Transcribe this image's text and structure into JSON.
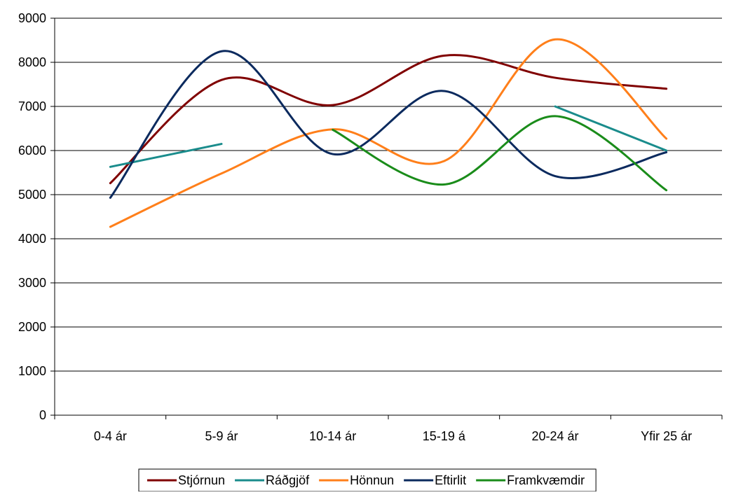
{
  "chart_data": {
    "type": "line",
    "categories": [
      "0-4 ár",
      "5-9 ár",
      "10-14 ár",
      "15-19 á",
      "20-24 ár",
      "Yfir 25 ár"
    ],
    "ylim": [
      0,
      9000
    ],
    "yticks": [
      0,
      1000,
      2000,
      3000,
      4000,
      5000,
      6000,
      7000,
      8000,
      9000
    ],
    "smooth": true,
    "grid": true,
    "legend_position": "bottom",
    "series": [
      {
        "name": "Stjórnun",
        "color": "#800000",
        "values": [
          5260,
          7600,
          7030,
          8150,
          7650,
          7400
        ]
      },
      {
        "name": "Ráðgjöf",
        "color": "#1a8c8c",
        "values": [
          5630,
          6150,
          null,
          null,
          7000,
          6000
        ]
      },
      {
        "name": "Hönnun",
        "color": "#ff7f1a",
        "values": [
          4270,
          5480,
          6480,
          5760,
          8520,
          6270
        ]
      },
      {
        "name": "Eftirlit",
        "color": "#0b2a5e",
        "values": [
          4930,
          8250,
          5920,
          7350,
          5420,
          5960
        ]
      },
      {
        "name": "Framkvæmdir",
        "color": "#1a8c1a",
        "values": [
          null,
          null,
          6470,
          5230,
          6780,
          5100
        ]
      }
    ]
  }
}
